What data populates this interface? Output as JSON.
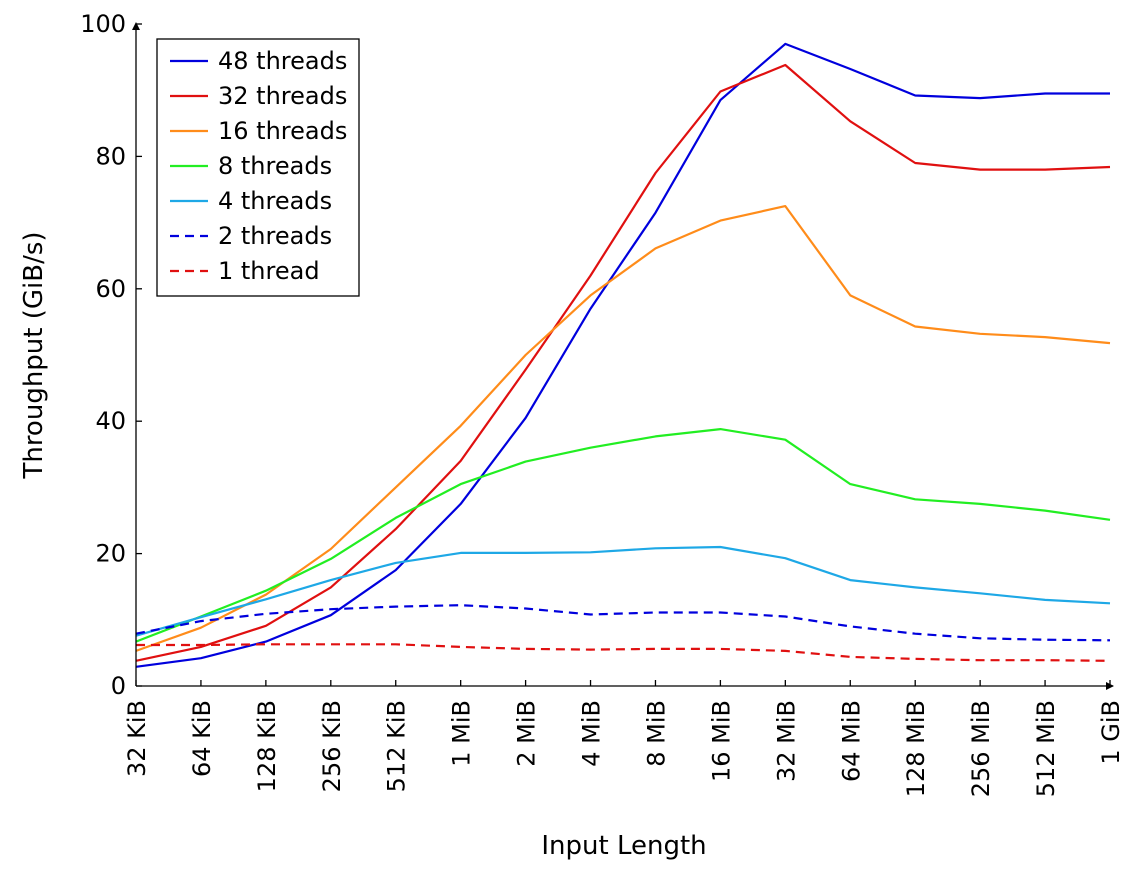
{
  "chart_data": {
    "type": "line",
    "title": "",
    "xlabel": "Input Length",
    "ylabel": "Throughput (GiB/s)",
    "ylim": [
      0,
      100
    ],
    "yticks": [
      0,
      20,
      40,
      60,
      80,
      100
    ],
    "categories": [
      "32 KiB",
      "64 KiB",
      "128 KiB",
      "256 KiB",
      "512 KiB",
      "1 MiB",
      "2 MiB",
      "4 MiB",
      "8 MiB",
      "16 MiB",
      "32 MiB",
      "64 MiB",
      "128 MiB",
      "256 MiB",
      "512 MiB",
      "1 GiB"
    ],
    "legend_position": "top-left",
    "grid": false,
    "series": [
      {
        "name": "48 threads",
        "color": "#0000dd",
        "dash": "solid",
        "values": [
          2.9,
          4.2,
          6.7,
          10.7,
          17.5,
          27.5,
          40.5,
          57.0,
          71.5,
          88.5,
          97.0,
          93.2,
          89.2,
          88.8,
          89.5,
          89.5
        ]
      },
      {
        "name": "32 threads",
        "color": "#e01010",
        "dash": "solid",
        "values": [
          3.8,
          5.9,
          9.1,
          14.9,
          23.7,
          34.0,
          47.8,
          62.0,
          77.5,
          89.8,
          93.8,
          85.3,
          79.0,
          78.0,
          78.0,
          78.4
        ]
      },
      {
        "name": "16 threads",
        "color": "#ff8c1a",
        "dash": "solid",
        "values": [
          5.3,
          8.8,
          13.8,
          20.7,
          30.0,
          39.3,
          50.0,
          59.0,
          66.1,
          70.3,
          72.5,
          59.0,
          54.3,
          53.2,
          52.7,
          51.8
        ]
      },
      {
        "name": "8 threads",
        "color": "#22ee22",
        "dash": "solid",
        "values": [
          6.7,
          10.5,
          14.4,
          19.2,
          25.4,
          30.5,
          33.9,
          36.0,
          37.7,
          38.8,
          37.2,
          30.5,
          28.2,
          27.5,
          26.5,
          25.1
        ]
      },
      {
        "name": "4 threads",
        "color": "#1ea8e6",
        "dash": "solid",
        "values": [
          7.6,
          10.4,
          13.1,
          16.0,
          18.6,
          20.1,
          20.1,
          20.2,
          20.8,
          21.0,
          19.3,
          16.0,
          14.9,
          14.0,
          13.0,
          12.5
        ]
      },
      {
        "name": "2 threads",
        "color": "#0000dd",
        "dash": "dashed",
        "values": [
          7.9,
          9.8,
          10.9,
          11.6,
          12.0,
          12.2,
          11.7,
          10.8,
          11.1,
          11.1,
          10.5,
          9.0,
          7.9,
          7.2,
          7.0,
          6.9
        ]
      },
      {
        "name": "1 thread",
        "color": "#e01010",
        "dash": "dashed",
        "values": [
          6.2,
          6.2,
          6.3,
          6.3,
          6.3,
          5.9,
          5.6,
          5.5,
          5.6,
          5.6,
          5.3,
          4.4,
          4.1,
          3.9,
          3.9,
          3.8
        ]
      }
    ]
  }
}
